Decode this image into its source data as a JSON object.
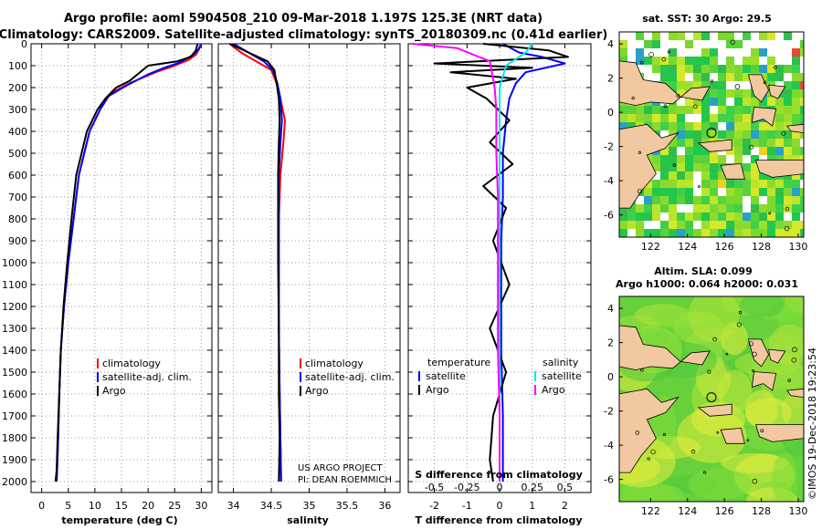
{
  "header": {
    "title_line1": "Argo profile: aoml 5904508_210 09-Mar-2018 1.197S 125.3E (NRT data)",
    "title_line2": "Climatology: CARS2009. Satellite-adjusted climatology: synTS_20180309.nc (0.41d earlier)"
  },
  "colors": {
    "climatology": "#ff0000",
    "satellite": "#0000ff",
    "argo": "#000000",
    "sal_satellite": "#00e5ee",
    "sal_argo": "#ff00ff",
    "land": "#f2c8a0"
  },
  "chart_data": [
    {
      "type": "line",
      "name": "temperature-profile",
      "xlabel": "temperature (deg C)",
      "ylabel": "",
      "xlim": [
        -2,
        32
      ],
      "ylim": [
        2050,
        0
      ],
      "xticks": [
        0,
        5,
        10,
        15,
        20,
        25,
        30
      ],
      "yticks": [
        0,
        100,
        200,
        300,
        400,
        500,
        600,
        700,
        800,
        900,
        1000,
        1100,
        1200,
        1300,
        1400,
        1500,
        1600,
        1700,
        1800,
        1900,
        2000
      ],
      "series": [
        {
          "name": "climatology",
          "color": "#ff0000",
          "x": [
            29.9,
            29.6,
            29.0,
            27.5,
            25.0,
            22.0,
            17.0,
            13.0,
            11.0,
            10.0,
            9.0,
            8.0,
            7.0,
            6.0,
            5.0,
            4.2,
            3.6,
            3.3,
            3.1,
            2.9,
            2.8
          ],
          "y": [
            0,
            25,
            50,
            75,
            100,
            125,
            175,
            225,
            300,
            350,
            400,
            500,
            600,
            800,
            1000,
            1200,
            1400,
            1600,
            1800,
            1950,
            2000
          ]
        },
        {
          "name": "satellite-adj. clim.",
          "color": "#0000ff",
          "x": [
            30.0,
            29.5,
            28.5,
            26.0,
            23.0,
            20.0,
            16.0,
            12.5,
            11.0,
            10.0,
            9.0,
            8.0,
            7.0,
            6.0,
            5.0,
            4.2,
            3.6,
            3.3,
            3.1,
            2.9,
            2.8
          ],
          "y": [
            0,
            25,
            50,
            85,
            110,
            140,
            190,
            240,
            300,
            350,
            400,
            500,
            600,
            800,
            1000,
            1200,
            1400,
            1600,
            1800,
            1950,
            2000
          ]
        },
        {
          "name": "Argo",
          "color": "#000000",
          "x": [
            29.3,
            29.0,
            28.0,
            25.5,
            20.0,
            16.5,
            14.0,
            12.0,
            10.5,
            9.5,
            8.5,
            7.5,
            6.5,
            5.6,
            4.8,
            4.1,
            3.6,
            3.3,
            3.0,
            2.8,
            2.6
          ],
          "y": [
            0,
            30,
            60,
            80,
            100,
            170,
            200,
            250,
            300,
            350,
            400,
            500,
            600,
            800,
            1000,
            1200,
            1400,
            1600,
            1800,
            1950,
            2000
          ]
        }
      ],
      "legend": [
        "climatology",
        "satellite-adj. clim.",
        "Argo"
      ]
    },
    {
      "type": "line",
      "name": "salinity-profile",
      "xlabel": "salinity",
      "xlim": [
        33.8,
        36.2
      ],
      "ylim": [
        2050,
        0
      ],
      "xticks": [
        34,
        34.5,
        35,
        35.5,
        36
      ],
      "series": [
        {
          "name": "climatology",
          "color": "#ff0000",
          "x": [
            33.95,
            34.1,
            34.3,
            34.5,
            34.57,
            34.62,
            34.68,
            34.66,
            34.62,
            34.6,
            34.6,
            34.6,
            34.61,
            34.62,
            34.63
          ],
          "y": [
            0,
            40,
            80,
            120,
            180,
            250,
            350,
            450,
            600,
            800,
            1000,
            1300,
            1600,
            1800,
            2000
          ]
        },
        {
          "name": "satellite-adj. clim.",
          "color": "#0000ff",
          "x": [
            34.0,
            34.2,
            34.4,
            34.52,
            34.58,
            34.62,
            34.64,
            34.62,
            34.6,
            34.6,
            34.6,
            34.6,
            34.61,
            34.62,
            34.63
          ],
          "y": [
            0,
            40,
            80,
            120,
            180,
            250,
            350,
            450,
            600,
            800,
            1000,
            1300,
            1600,
            1800,
            2000
          ]
        },
        {
          "name": "Argo",
          "color": "#000000",
          "x": [
            33.95,
            34.2,
            34.45,
            34.54,
            34.57,
            34.6,
            34.61,
            34.6,
            34.59,
            34.59,
            34.59,
            34.6,
            34.6,
            34.61,
            34.6
          ],
          "y": [
            0,
            40,
            80,
            120,
            180,
            250,
            350,
            450,
            600,
            800,
            1000,
            1300,
            1600,
            1800,
            2000
          ]
        }
      ],
      "legend": [
        "climatology",
        "satellite-adj. clim.",
        "Argo"
      ],
      "annotation": [
        "US ARGO PROJECT",
        "PI: DEAN ROEMMICH"
      ]
    },
    {
      "type": "line",
      "name": "difference-profile",
      "xlabel": "T difference from climatology",
      "top_axis_label": "S difference from climatology",
      "xlim": [
        -2.8,
        2.8
      ],
      "ylim": [
        2050,
        0
      ],
      "xticks": [
        -2,
        -1,
        0,
        1,
        2
      ],
      "top_ticks": [
        "-0.5",
        "-0.25",
        "0",
        "0.25",
        "0.5"
      ],
      "series": [
        {
          "name": "temperature satellite",
          "color": "#0000ff",
          "x": [
            0.1,
            0.6,
            1.3,
            2.0,
            0.8,
            0.5,
            0.3,
            0.2,
            0.1,
            0.1,
            0.05,
            0.05,
            0.05,
            0.1,
            0.1,
            0.1
          ],
          "y": [
            0,
            40,
            60,
            90,
            130,
            180,
            250,
            350,
            500,
            700,
            900,
            1100,
            1400,
            1700,
            1900,
            2000
          ]
        },
        {
          "name": "temperature Argo",
          "color": "#000000",
          "x": [
            -0.5,
            1.5,
            2.1,
            -2.0,
            1.0,
            -1.5,
            0.5,
            -1.0,
            -0.4,
            0.3,
            -0.3,
            0.4,
            -0.5,
            0.2,
            -0.2,
            0.3,
            -0.3,
            0.2,
            -0.2,
            -0.3,
            -0.2
          ],
          "y": [
            0,
            30,
            60,
            90,
            110,
            130,
            160,
            200,
            250,
            350,
            450,
            550,
            650,
            750,
            900,
            1100,
            1300,
            1500,
            1700,
            1900,
            2000
          ]
        },
        {
          "name": "salinity satellite",
          "color": "#00e5ee",
          "x": [
            1.0,
            0.8,
            0.2,
            0.0,
            0.0,
            0.0,
            0.0,
            0.0,
            0.0,
            0.0,
            0.0,
            0.0,
            0.0
          ],
          "y": [
            0,
            40,
            100,
            200,
            300,
            500,
            700,
            900,
            1100,
            1400,
            1700,
            1900,
            2000
          ]
        },
        {
          "name": "salinity Argo",
          "color": "#ff00ff",
          "x": [
            -2.7,
            -1.3,
            -0.3,
            -0.15,
            -0.1,
            -0.1,
            -0.05,
            -0.05,
            -0.05,
            -0.05,
            0.0,
            0.0,
            0.0
          ],
          "y": [
            0,
            20,
            80,
            200,
            300,
            500,
            700,
            900,
            1100,
            1400,
            1700,
            1900,
            2000
          ]
        }
      ],
      "legend_left_title": "temperature",
      "legend_right_title": "salinity",
      "legend": [
        "satellite",
        "Argo"
      ]
    },
    {
      "type": "heatmap",
      "name": "sst-map",
      "title": "sat. SST: 30 Argo: 29.5",
      "xticks": [
        122,
        124,
        126,
        128,
        130
      ],
      "yticks": [
        4,
        2,
        0,
        -2,
        -4,
        -6
      ],
      "xlim": [
        120.3,
        130.3
      ],
      "ylim": [
        -7.3,
        4.7
      ],
      "marker": {
        "lon": 125.3,
        "lat": -1.197
      }
    },
    {
      "type": "heatmap",
      "name": "sla-map",
      "title": "Altim. SLA: 0.099",
      "subtitle": "Argo h1000: 0.064 h2000: 0.031",
      "xticks": [
        122,
        124,
        126,
        128,
        130
      ],
      "yticks": [
        4,
        2,
        0,
        -2,
        -4,
        -6
      ],
      "xlim": [
        120.3,
        130.3
      ],
      "ylim": [
        -7.3,
        4.7
      ],
      "marker": {
        "lon": 125.3,
        "lat": -1.197
      }
    }
  ],
  "footer": {
    "stamp": "©IMOS 19-Dec-2018 19:23:54"
  }
}
